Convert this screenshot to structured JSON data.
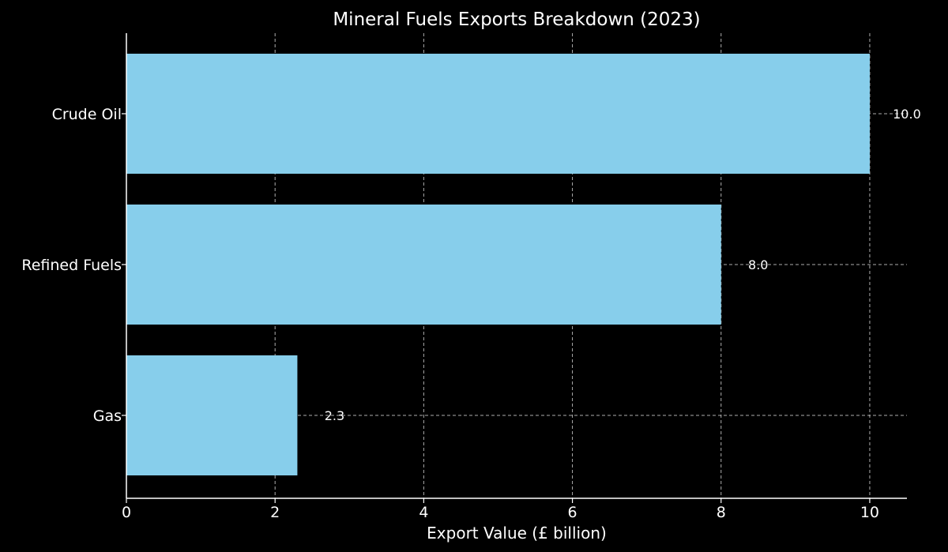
{
  "chart_data": {
    "type": "bar",
    "orientation": "horizontal",
    "title": "Mineral Fuels Exports Breakdown (2023)",
    "xlabel": "Export Value (£ billion)",
    "ylabel": "",
    "categories": [
      "Crude Oil",
      "Refined Fuels",
      "Gas"
    ],
    "values": [
      10.0,
      8.0,
      2.3
    ],
    "data_labels": [
      "10.0",
      "8.0",
      "2.3"
    ],
    "xlim": [
      0,
      10.5
    ],
    "x_ticks": [
      0,
      2,
      4,
      6,
      8,
      10
    ],
    "x_tick_labels": [
      "0",
      "2",
      "4",
      "6",
      "8",
      "10"
    ],
    "grid": true,
    "grid_style": "dashed",
    "legend": "none",
    "colors": {
      "background": "#000000",
      "bar": "#87ceeb",
      "text": "#ffffff",
      "axis": "#ffffff",
      "grid": "#cccccc"
    }
  }
}
